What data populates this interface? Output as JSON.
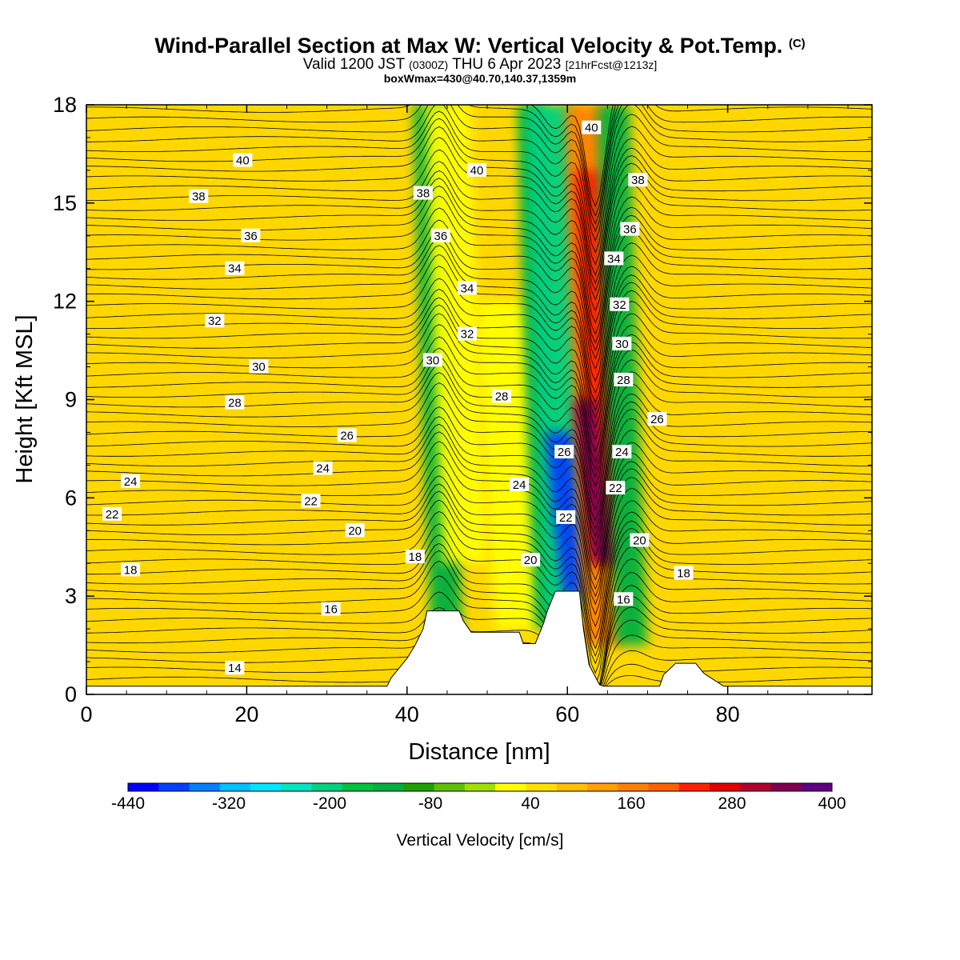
{
  "header": {
    "title_main": "Wind-Parallel Section at Max W: Vertical Velocity & Pot.Temp.",
    "title_mark": "(C)",
    "valid_prefix": "Valid 1200 JST",
    "valid_utc": "(0300Z)",
    "valid_date": "THU 6 Apr 2023",
    "valid_fcst": "[21hrFcst@1213z]",
    "box_info": "boxWmax=430@40.70,140.37,1359m"
  },
  "chart_data": {
    "type": "heatmap",
    "xlabel": "Distance [nm]",
    "ylabel": "Height [Kft MSL]",
    "xlim": [
      0,
      98
    ],
    "ylim": [
      0,
      18
    ],
    "x_ticks": [
      0,
      20,
      40,
      60,
      80
    ],
    "y_ticks": [
      0,
      3,
      6,
      9,
      12,
      15,
      18
    ],
    "colorbar": {
      "title": "Vertical Velocity [cm/s]",
      "labels": [
        "-440",
        "-320",
        "-200",
        "-80",
        "40",
        "160",
        "280",
        "400"
      ],
      "colors": [
        "#0000ff",
        "#0040ff",
        "#0080ff",
        "#00c0ff",
        "#00e5ff",
        "#00e5c0",
        "#00d080",
        "#00c040",
        "#00b040",
        "#20a000",
        "#60c000",
        "#a0e000",
        "#ffff00",
        "#ffe000",
        "#ffc000",
        "#ffa000",
        "#ff8000",
        "#ff6000",
        "#ff2000",
        "#e00000",
        "#b00030",
        "#800050",
        "#600080"
      ]
    },
    "terrain": [
      [
        0,
        0.25
      ],
      [
        37.5,
        0.25
      ],
      [
        38,
        0.5
      ],
      [
        39,
        0.8
      ],
      [
        40,
        1.1
      ],
      [
        41,
        1.5
      ],
      [
        42,
        2.0
      ],
      [
        42.5,
        2.55
      ],
      [
        46.5,
        2.55
      ],
      [
        47,
        2.25
      ],
      [
        48,
        1.9
      ],
      [
        54,
        1.9
      ],
      [
        54.5,
        1.55
      ],
      [
        56,
        1.55
      ],
      [
        57,
        2.15
      ],
      [
        57.5,
        2.55
      ],
      [
        58.5,
        3.15
      ],
      [
        61.5,
        3.15
      ],
      [
        62,
        2.0
      ],
      [
        62.7,
        0.9
      ],
      [
        64,
        0.3
      ],
      [
        64.5,
        0.25
      ],
      [
        71.5,
        0.25
      ],
      [
        72,
        0.6
      ],
      [
        73.5,
        0.95
      ],
      [
        76,
        0.95
      ],
      [
        77,
        0.65
      ],
      [
        79.5,
        0.25
      ],
      [
        98,
        0.25
      ]
    ],
    "vv_features": [
      {
        "x": [
          43,
          47
        ],
        "y": [
          1.5,
          18
        ],
        "vv": -110
      },
      {
        "x": [
          44.5,
          50
        ],
        "y": [
          4,
          18
        ],
        "vv": 60
      },
      {
        "x": [
          51,
          57
        ],
        "y": [
          2,
          12
        ],
        "vv": 70
      },
      {
        "x": [
          56,
          59.5
        ],
        "y": [
          2,
          18
        ],
        "vv": -90
      },
      {
        "x": [
          57,
          63
        ],
        "y": [
          2.5,
          18
        ],
        "vv": -200
      },
      {
        "x": [
          59.5,
          63
        ],
        "y": [
          3,
          8
        ],
        "vv": -400
      },
      {
        "x": [
          62,
          67
        ],
        "y": [
          1.5,
          18
        ],
        "vv": 200
      },
      {
        "x": [
          63,
          67
        ],
        "y": [
          4,
          16
        ],
        "vv": 300
      },
      {
        "x": [
          63,
          66
        ],
        "y": [
          4,
          9
        ],
        "vv": 400
      },
      {
        "x": [
          66,
          70
        ],
        "y": [
          1.5,
          18
        ],
        "vv": -100
      }
    ],
    "theta_labels": [
      {
        "text": "40",
        "x": 19.5,
        "y": 16.3
      },
      {
        "text": "38",
        "x": 14,
        "y": 15.2
      },
      {
        "text": "36",
        "x": 20.5,
        "y": 14.0
      },
      {
        "text": "34",
        "x": 18.5,
        "y": 13.0
      },
      {
        "text": "32",
        "x": 16,
        "y": 11.4
      },
      {
        "text": "30",
        "x": 21.5,
        "y": 10.0
      },
      {
        "text": "28",
        "x": 18.5,
        "y": 8.9
      },
      {
        "text": "26",
        "x": 32.5,
        "y": 7.9
      },
      {
        "text": "24",
        "x": 5.5,
        "y": 6.5
      },
      {
        "text": "24",
        "x": 29.5,
        "y": 6.9
      },
      {
        "text": "22",
        "x": 3.2,
        "y": 5.5
      },
      {
        "text": "22",
        "x": 28,
        "y": 5.9
      },
      {
        "text": "20",
        "x": 33.5,
        "y": 5.0
      },
      {
        "text": "18",
        "x": 5.5,
        "y": 3.8
      },
      {
        "text": "18",
        "x": 41,
        "y": 4.2
      },
      {
        "text": "16",
        "x": 30.5,
        "y": 2.6
      },
      {
        "text": "14",
        "x": 18.5,
        "y": 0.8
      },
      {
        "text": "40",
        "x": 63,
        "y": 17.3
      },
      {
        "text": "40",
        "x": 48.7,
        "y": 16.0
      },
      {
        "text": "38",
        "x": 42,
        "y": 15.3
      },
      {
        "text": "38",
        "x": 68.8,
        "y": 15.7
      },
      {
        "text": "36",
        "x": 44.2,
        "y": 14.0
      },
      {
        "text": "36",
        "x": 67.8,
        "y": 14.2
      },
      {
        "text": "34",
        "x": 47.5,
        "y": 12.4
      },
      {
        "text": "34",
        "x": 65.8,
        "y": 13.3
      },
      {
        "text": "32",
        "x": 47.5,
        "y": 11.0
      },
      {
        "text": "32",
        "x": 66.5,
        "y": 11.9
      },
      {
        "text": "30",
        "x": 43.2,
        "y": 10.2
      },
      {
        "text": "30",
        "x": 66.8,
        "y": 10.7
      },
      {
        "text": "28",
        "x": 51.8,
        "y": 9.1
      },
      {
        "text": "28",
        "x": 67,
        "y": 9.6
      },
      {
        "text": "26",
        "x": 71.2,
        "y": 8.4
      },
      {
        "text": "26",
        "x": 59.6,
        "y": 7.4
      },
      {
        "text": "24",
        "x": 54,
        "y": 6.4
      },
      {
        "text": "24",
        "x": 66.8,
        "y": 7.4
      },
      {
        "text": "22",
        "x": 59.8,
        "y": 5.4
      },
      {
        "text": "22",
        "x": 66,
        "y": 6.3
      },
      {
        "text": "20",
        "x": 55.4,
        "y": 4.1
      },
      {
        "text": "20",
        "x": 69,
        "y": 4.7
      },
      {
        "text": "18",
        "x": 74.5,
        "y": 3.7
      },
      {
        "text": "16",
        "x": 67,
        "y": 2.9
      }
    ]
  }
}
